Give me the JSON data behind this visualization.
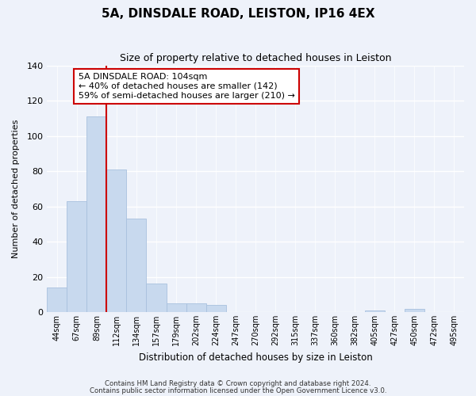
{
  "title": "5A, DINSDALE ROAD, LEISTON, IP16 4EX",
  "subtitle": "Size of property relative to detached houses in Leiston",
  "xlabel": "Distribution of detached houses by size in Leiston",
  "ylabel": "Number of detached properties",
  "bar_color": "#c8d9ee",
  "bar_edge_color": "#a8c0de",
  "marker_line_color": "#cc0000",
  "bin_labels": [
    "44sqm",
    "67sqm",
    "89sqm",
    "112sqm",
    "134sqm",
    "157sqm",
    "179sqm",
    "202sqm",
    "224sqm",
    "247sqm",
    "270sqm",
    "292sqm",
    "315sqm",
    "337sqm",
    "360sqm",
    "382sqm",
    "405sqm",
    "427sqm",
    "450sqm",
    "472sqm",
    "495sqm"
  ],
  "bar_heights": [
    14,
    63,
    111,
    81,
    53,
    16,
    5,
    5,
    4,
    0,
    0,
    0,
    0,
    0,
    0,
    0,
    1,
    0,
    2,
    0,
    0
  ],
  "marker_bar_index": 2,
  "annotation_line1": "5A DINSDALE ROAD: 104sqm",
  "annotation_line2": "← 40% of detached houses are smaller (142)",
  "annotation_line3": "59% of semi-detached houses are larger (210) →",
  "annotation_box_color": "#ffffff",
  "annotation_box_edge": "#cc0000",
  "ylim": [
    0,
    140
  ],
  "yticks": [
    0,
    20,
    40,
    60,
    80,
    100,
    120,
    140
  ],
  "footer1": "Contains HM Land Registry data © Crown copyright and database right 2024.",
  "footer2": "Contains public sector information licensed under the Open Government Licence v3.0.",
  "background_color": "#eef2fa",
  "grid_color": "#ffffff",
  "title_fontsize": 11,
  "subtitle_fontsize": 9
}
